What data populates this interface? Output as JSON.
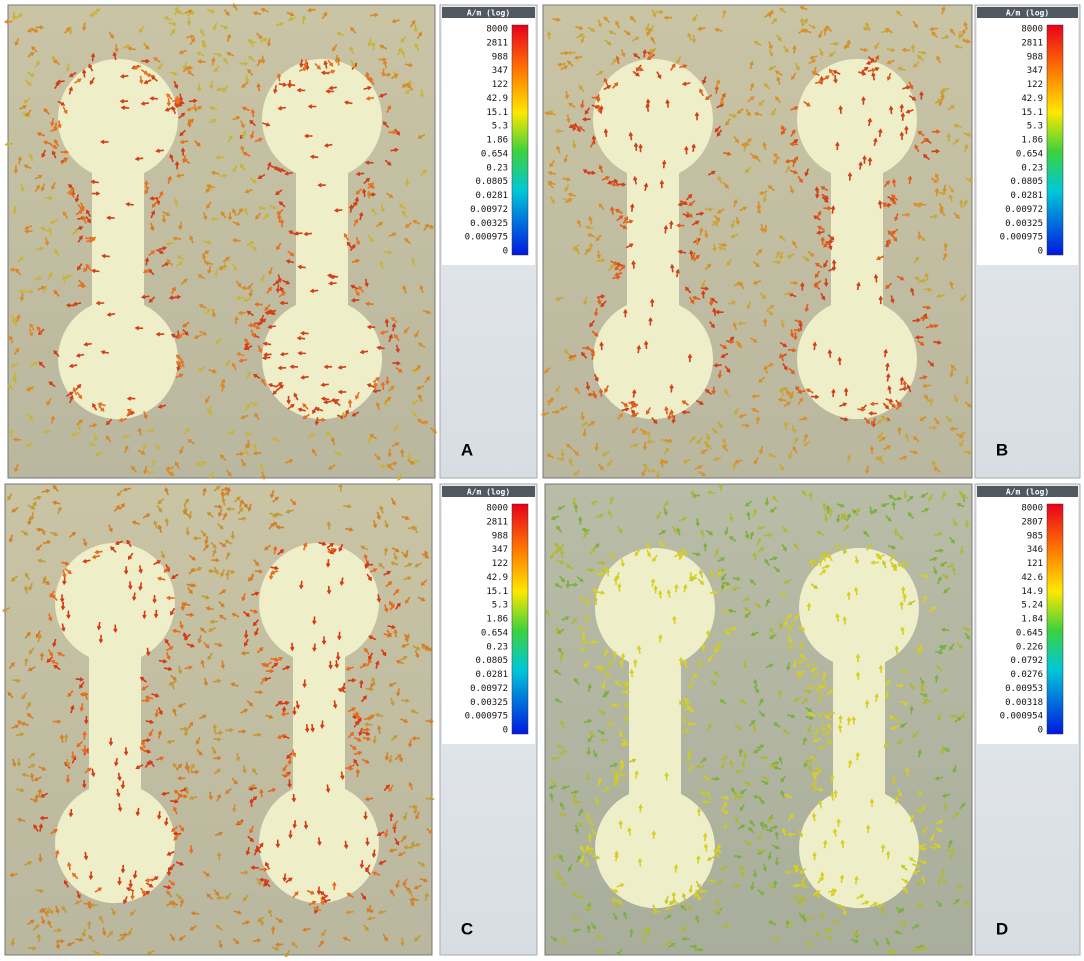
{
  "panels": [
    {
      "label": "A",
      "colorbar": {
        "title": "A/m (log)",
        "ticks": [
          "8000",
          "2811",
          "988",
          "347",
          "122",
          "42.9",
          "15.1",
          "5.3",
          "1.86",
          "0.654",
          "0.23",
          "0.0805",
          "0.0281",
          "0.00972",
          "0.00325",
          "0.000975",
          "0"
        ]
      }
    },
    {
      "label": "B",
      "colorbar": {
        "title": "A/m (log)",
        "ticks": [
          "8000",
          "2811",
          "988",
          "347",
          "122",
          "42.9",
          "15.1",
          "5.3",
          "1.86",
          "0.654",
          "0.23",
          "0.0805",
          "0.0281",
          "0.00972",
          "0.00325",
          "0.000975",
          "0"
        ]
      }
    },
    {
      "label": "C",
      "colorbar": {
        "title": "A/m (log)",
        "ticks": [
          "8000",
          "2811",
          "988",
          "347",
          "122",
          "42.9",
          "15.1",
          "5.3",
          "1.86",
          "0.654",
          "0.23",
          "0.0805",
          "0.0281",
          "0.00972",
          "0.00325",
          "0.000975",
          "0"
        ]
      }
    },
    {
      "label": "D",
      "colorbar": {
        "title": "A/m (log)",
        "ticks": [
          "8000",
          "2807",
          "985",
          "346",
          "121",
          "42.6",
          "14.9",
          "5.24",
          "1.84",
          "0.645",
          "0.226",
          "0.0792",
          "0.0276",
          "0.00953",
          "0.00318",
          "0.000954",
          "0"
        ]
      }
    }
  ]
}
